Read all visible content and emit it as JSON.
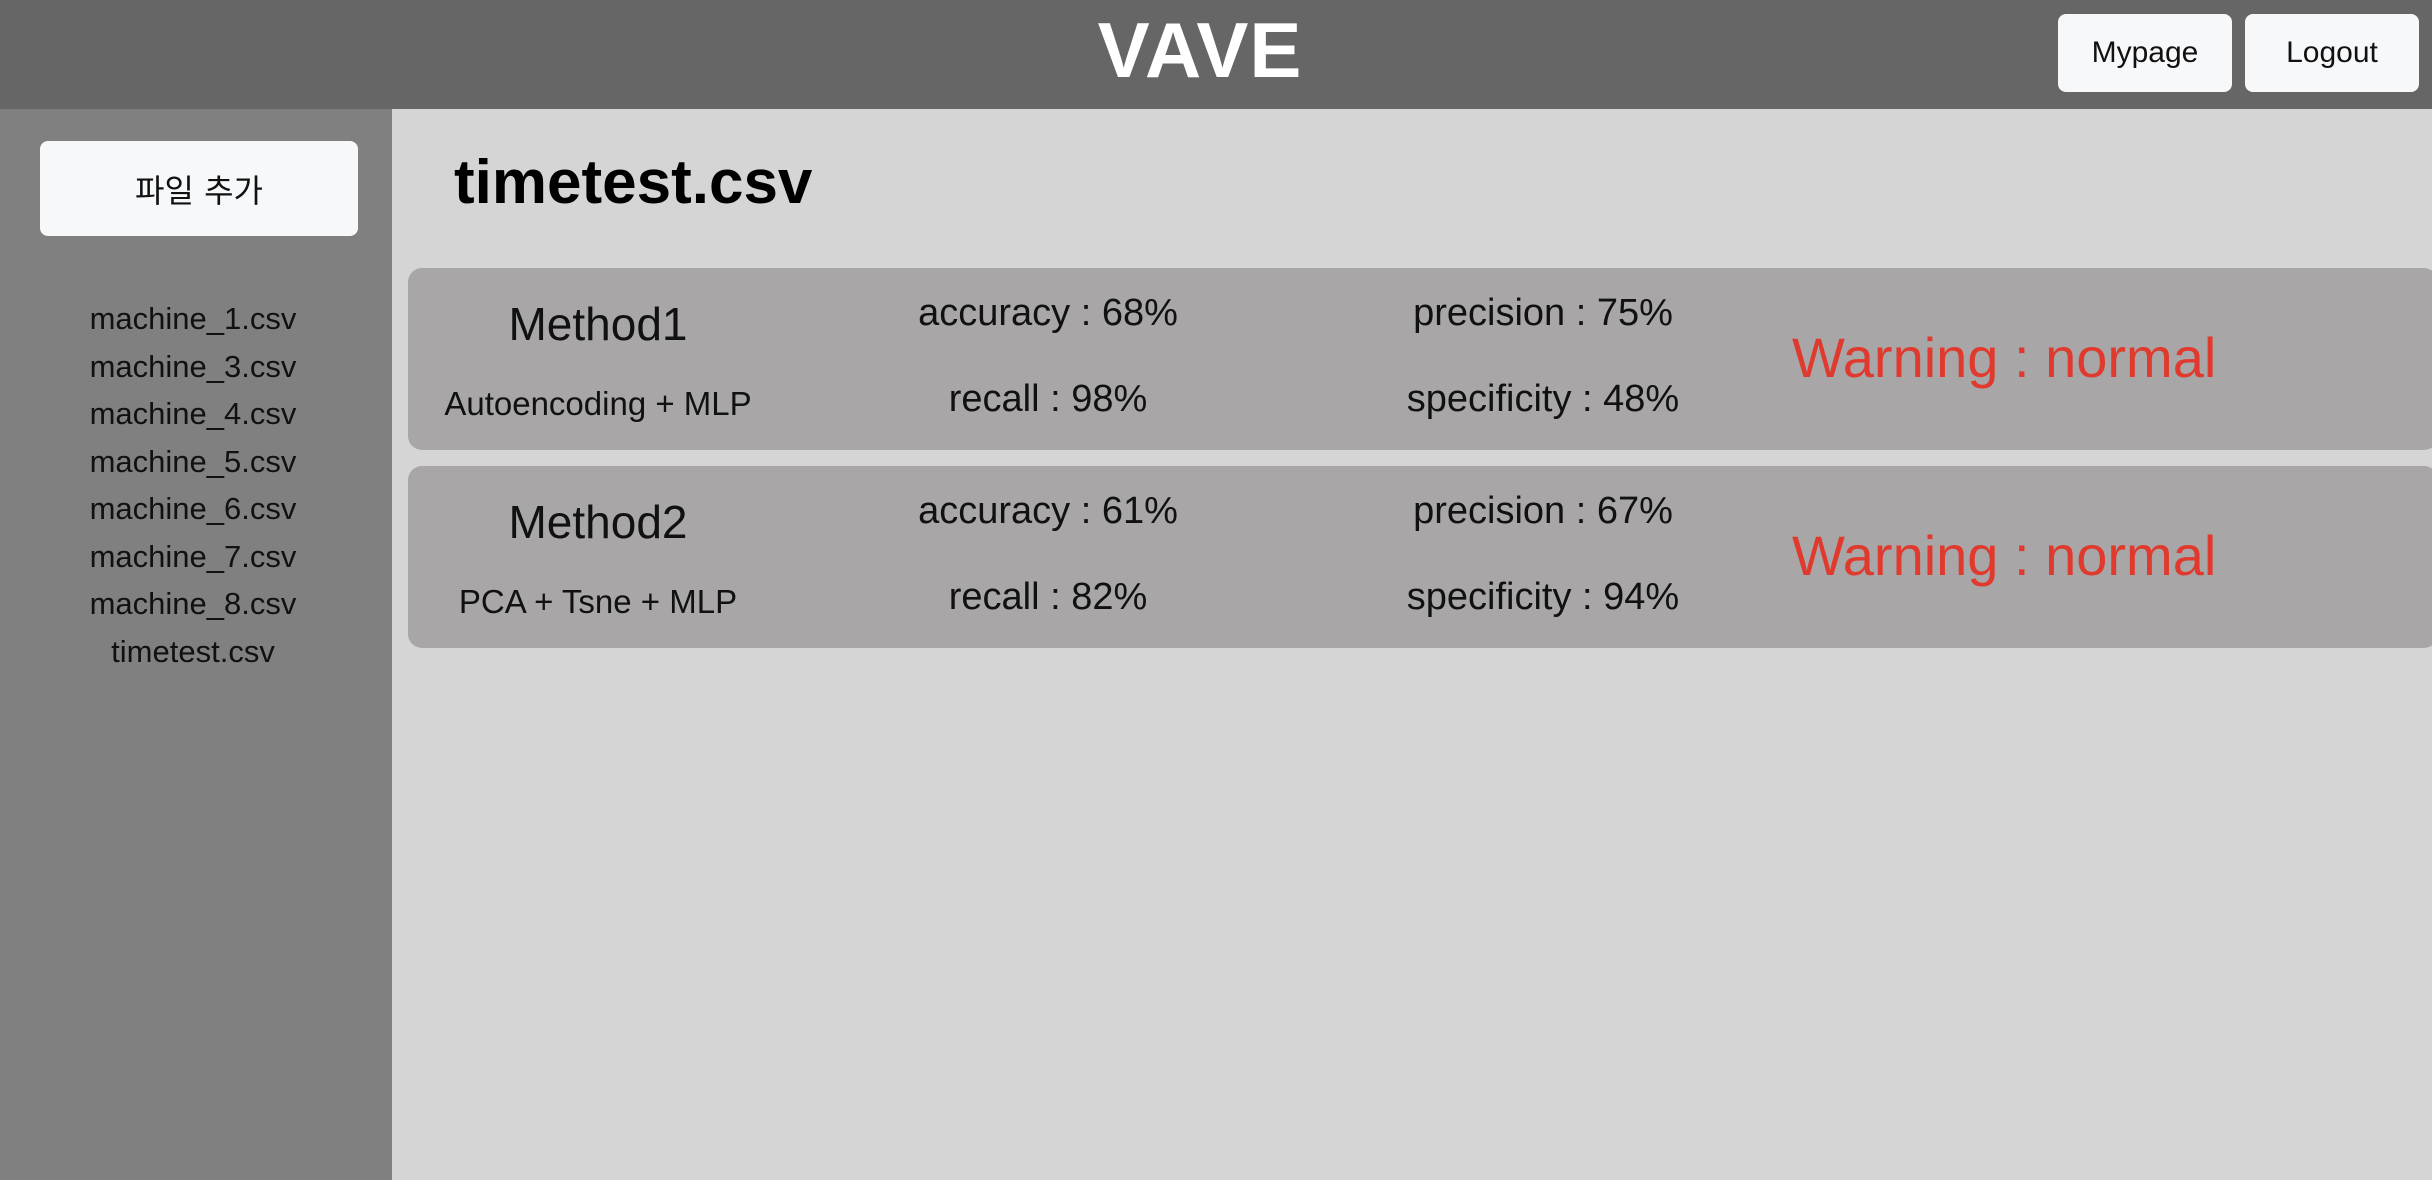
{
  "header": {
    "title": "VAVE",
    "mypage_label": "Mypage",
    "logout_label": "Logout"
  },
  "sidebar": {
    "add_file_label": "파일 추가",
    "files": [
      "machine_1.csv",
      "machine_3.csv",
      "machine_4.csv",
      "machine_5.csv",
      "machine_6.csv",
      "machine_7.csv",
      "machine_8.csv",
      "timetest.csv"
    ]
  },
  "main": {
    "title": "timetest.csv",
    "methods": [
      {
        "name": "Method1",
        "description": "Autoencoding + MLP",
        "accuracy": "accuracy : 68%",
        "precision": "precision : 75%",
        "recall": "recall : 98%",
        "specificity": "specificity : 48%",
        "warning": "Warning : normal"
      },
      {
        "name": "Method2",
        "description": "PCA + Tsne + MLP",
        "accuracy": "accuracy : 61%",
        "precision": "precision : 67%",
        "recall": "recall : 82%",
        "specificity": "specificity : 94%",
        "warning": "Warning : normal"
      }
    ]
  },
  "colors": {
    "header_bg": "#666666",
    "sidebar_bg": "#808080",
    "main_bg": "#d5d5d5",
    "card_bg": "#a8a6a6",
    "warning": "#e03a2e",
    "button_bg": "#f7f8fa"
  }
}
